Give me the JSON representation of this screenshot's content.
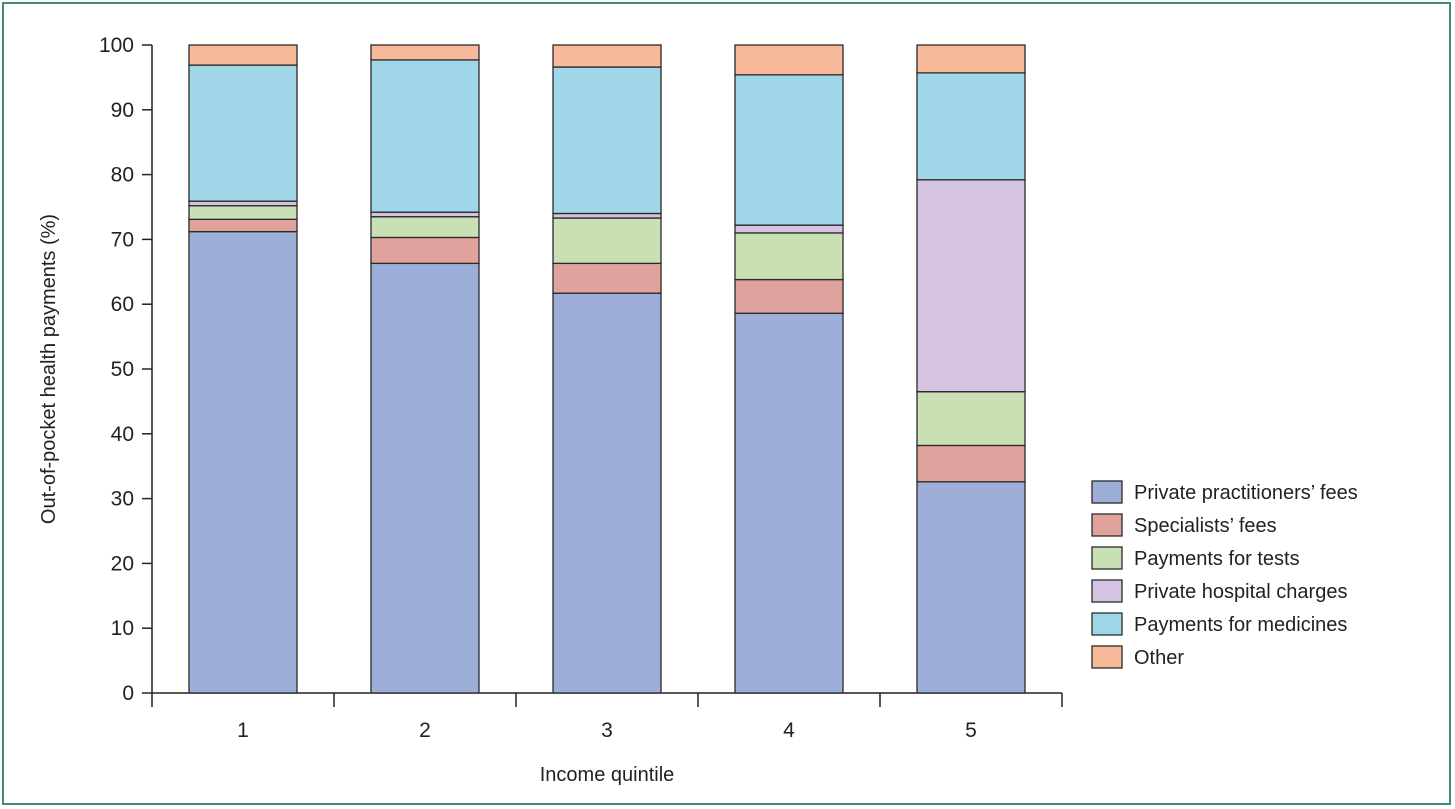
{
  "chart_data": {
    "type": "bar",
    "stacked": true,
    "orientation": "vertical",
    "title": "",
    "xlabel": "Income quintile",
    "ylabel": "Out-of-pocket health payments (%)",
    "categories": [
      "1",
      "2",
      "3",
      "4",
      "5"
    ],
    "ylim": [
      0,
      100
    ],
    "yticks": [
      0,
      10,
      20,
      30,
      40,
      50,
      60,
      70,
      80,
      90,
      100
    ],
    "grid": false,
    "legend_position": "bottom-right",
    "series": [
      {
        "name": "Private practitioners’ fees",
        "color": "#9dafd8",
        "values": [
          71.2,
          66.3,
          61.7,
          58.6,
          32.6
        ]
      },
      {
        "name": "Specialists’ fees",
        "color": "#e0a29c",
        "values": [
          1.9,
          4.0,
          4.6,
          5.2,
          5.6
        ]
      },
      {
        "name": "Payments for tests",
        "color": "#c9e0b4",
        "values": [
          2.1,
          3.2,
          7.0,
          7.2,
          8.3
        ]
      },
      {
        "name": "Private hospital charges",
        "color": "#d4c3e1",
        "values": [
          0.7,
          0.7,
          0.7,
          1.2,
          32.7
        ]
      },
      {
        "name": "Payments for medicines",
        "color": "#9fd7e9",
        "values": [
          21.0,
          23.5,
          22.6,
          23.2,
          16.5
        ]
      },
      {
        "name": "Other",
        "color": "#f8b89a",
        "values": [
          3.1,
          2.3,
          3.4,
          4.6,
          4.3
        ]
      }
    ]
  }
}
